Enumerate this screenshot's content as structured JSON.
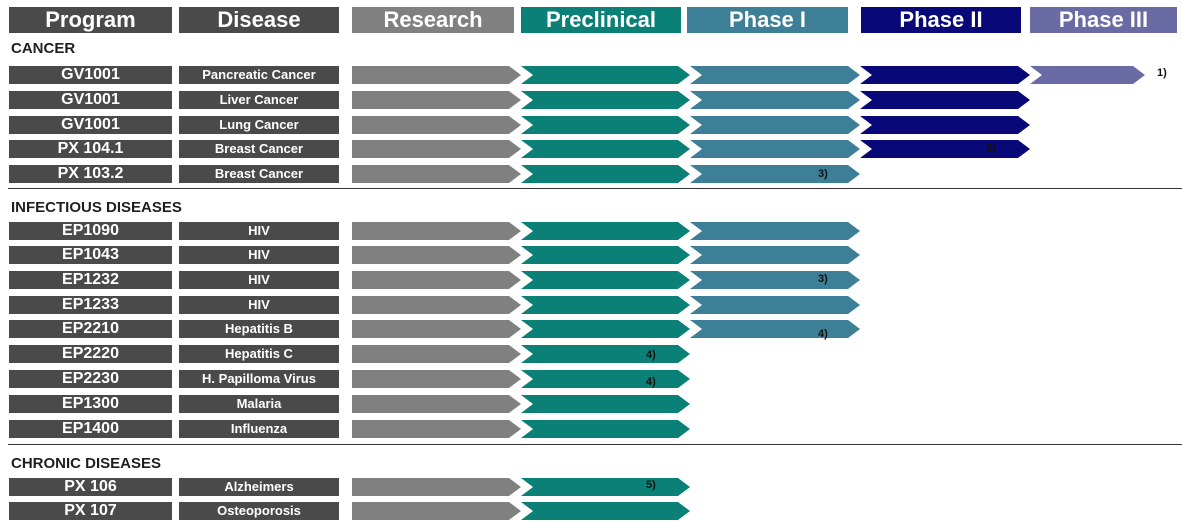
{
  "headers": {
    "program": "Program",
    "disease": "Disease",
    "research": "Research",
    "preclinical": "Preclinical",
    "phase1": "Phase I",
    "phase2": "Phase II",
    "phase3": "Phase III"
  },
  "colors": {
    "cell": "#4a4a4a",
    "research": "#808080",
    "preclinical": "#0a8077",
    "phase1": "#3d7f96",
    "phase2": "#080878",
    "phase3": "#6a6aa4"
  },
  "sections": [
    {
      "title": "CANCER",
      "rows": [
        {
          "program": "GV1001",
          "disease": "Pancreatic Cancer",
          "stage": 5,
          "note": "1)"
        },
        {
          "program": "GV1001",
          "disease": "Liver Cancer",
          "stage": 4,
          "note": ""
        },
        {
          "program": "GV1001",
          "disease": "Lung Cancer",
          "stage": 4,
          "note": ""
        },
        {
          "program": "PX 104.1",
          "disease": "Breast Cancer",
          "stage": 4,
          "note": "2)"
        },
        {
          "program": "PX 103.2",
          "disease": "Breast Cancer",
          "stage": 3,
          "note": "3)"
        }
      ]
    },
    {
      "title": "INFECTIOUS DISEASES",
      "rows": [
        {
          "program": "EP1090",
          "disease": "HIV",
          "stage": 3,
          "note": ""
        },
        {
          "program": "EP1043",
          "disease": "HIV",
          "stage": 3,
          "note": ""
        },
        {
          "program": "EP1232",
          "disease": "HIV",
          "stage": 3,
          "note": "3)"
        },
        {
          "program": "EP1233",
          "disease": "HIV",
          "stage": 3,
          "note": ""
        },
        {
          "program": "EP2210",
          "disease": "Hepatitis B",
          "stage": 3,
          "note": "4)"
        },
        {
          "program": "EP2220",
          "disease": "Hepatitis C",
          "stage": 2,
          "note": "4)"
        },
        {
          "program": "EP2230",
          "disease": "H. Papilloma Virus",
          "stage": 2,
          "note": "4)"
        },
        {
          "program": "EP1300",
          "disease": "Malaria",
          "stage": 2,
          "note": ""
        },
        {
          "program": "EP1400",
          "disease": "Influenza",
          "stage": 2,
          "note": ""
        }
      ]
    },
    {
      "title": "CHRONIC DISEASES",
      "rows": [
        {
          "program": "PX 106",
          "disease": "Alzheimers",
          "stage": 2,
          "note": "5)"
        },
        {
          "program": "PX 107",
          "disease": "Osteoporosis",
          "stage": 2,
          "note": ""
        }
      ]
    }
  ]
}
